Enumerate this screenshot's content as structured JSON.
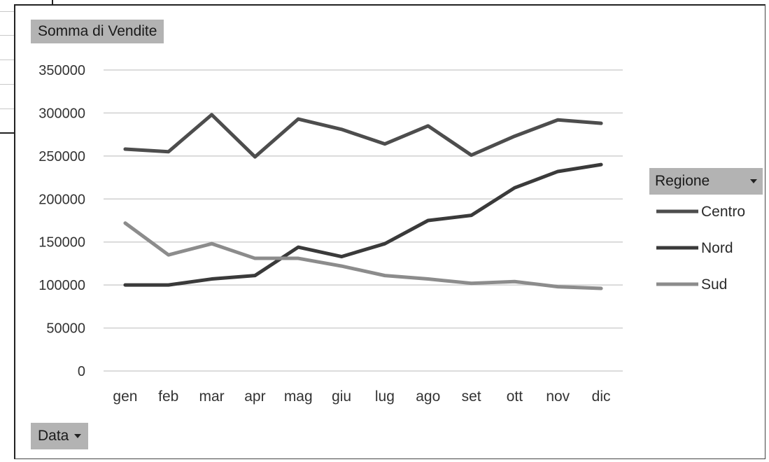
{
  "chart_data": {
    "type": "line",
    "title": "Somma di Vendite",
    "xlabel": "",
    "ylabel": "",
    "categories": [
      "gen",
      "feb",
      "mar",
      "apr",
      "mag",
      "giu",
      "lug",
      "ago",
      "set",
      "ott",
      "nov",
      "dic"
    ],
    "ylim": [
      0,
      350000
    ],
    "y_ticks": [
      "0",
      "50000",
      "100000",
      "150000",
      "200000",
      "250000",
      "300000",
      "350000"
    ],
    "grid": true,
    "legend_position": "right",
    "legend_title": "Regione",
    "series": [
      {
        "name": "Centro",
        "color": "#4d4d4d",
        "values": [
          258000,
          255000,
          298000,
          249000,
          293000,
          281000,
          264000,
          285000,
          251000,
          273000,
          292000,
          288000
        ]
      },
      {
        "name": "Nord",
        "color": "#3a3a3a",
        "values": [
          100000,
          100000,
          107000,
          111000,
          144000,
          133000,
          148000,
          175000,
          181000,
          213000,
          232000,
          240000
        ]
      },
      {
        "name": "Sud",
        "color": "#8c8c8c",
        "values": [
          172000,
          135000,
          148000,
          131000,
          131000,
          122000,
          111000,
          107000,
          102000,
          104000,
          98000,
          96000
        ]
      }
    ]
  },
  "pivot_fields": {
    "value_field": "Somma di Vendite",
    "axis_field": "Data",
    "legend_field": "Regione"
  }
}
